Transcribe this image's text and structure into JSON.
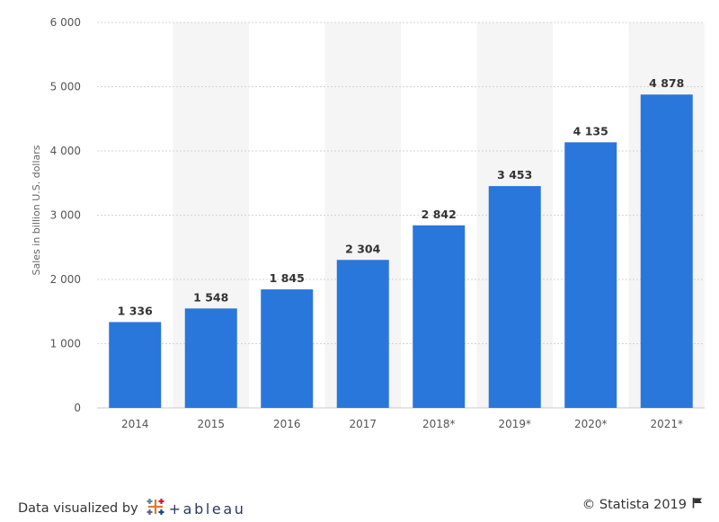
{
  "chart_data": {
    "type": "bar",
    "categories": [
      "2014",
      "2015",
      "2016",
      "2017",
      "2018*",
      "2019*",
      "2020*",
      "2021*"
    ],
    "values": [
      1336,
      1548,
      1845,
      2304,
      2842,
      3453,
      4135,
      4878
    ],
    "value_labels": [
      "1 336",
      "1 548",
      "1 845",
      "2 304",
      "2 842",
      "3 453",
      "4 135",
      "4 878"
    ],
    "ylabel": "Sales in billion U.S. dollars",
    "ylim": [
      0,
      6000
    ],
    "yticks": [
      0,
      1000,
      2000,
      3000,
      4000,
      5000,
      6000
    ],
    "ytick_labels": [
      "0",
      "1 000",
      "2 000",
      "3 000",
      "4 000",
      "5 000",
      "6 000"
    ],
    "bar_color": "#2a77dc",
    "grid": true,
    "legend": "none"
  },
  "footer": {
    "visualized_by": "Data visualized by",
    "tableau_wordmark": "+ableau",
    "copyright": "© Statista 2019"
  },
  "icons": {
    "tableau_logo": "tableau-cross-logo-icon",
    "flag": "flag-icon"
  }
}
